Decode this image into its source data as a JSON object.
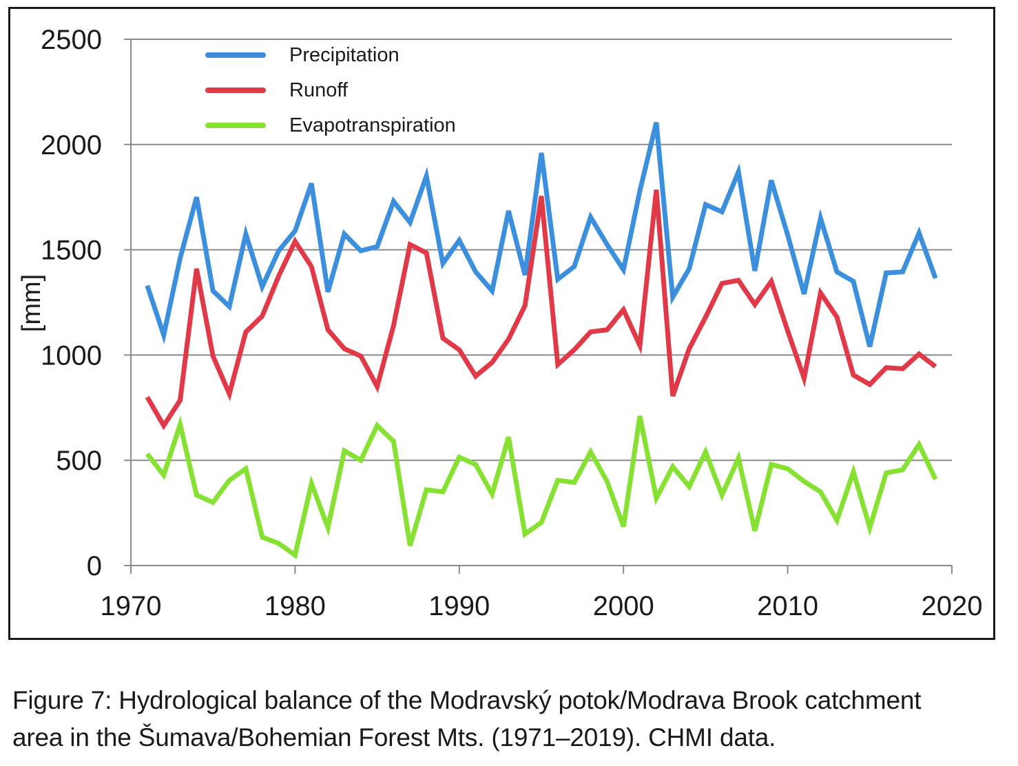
{
  "chart_data": {
    "type": "line",
    "ylabel": "[mm]",
    "xlim": [
      1970,
      2020
    ],
    "ylim": [
      0,
      2500
    ],
    "xticks": [
      "1970",
      "1980",
      "1990",
      "2000",
      "2010",
      "2020"
    ],
    "yticks": [
      "0",
      "500",
      "1000",
      "1500",
      "2000",
      "2500"
    ],
    "grid": "horizontal",
    "legend_position": "top-left",
    "x": [
      1971,
      1972,
      1973,
      1974,
      1975,
      1976,
      1977,
      1978,
      1979,
      1980,
      1981,
      1982,
      1983,
      1984,
      1985,
      1986,
      1987,
      1988,
      1989,
      1990,
      1991,
      1992,
      1993,
      1994,
      1995,
      1996,
      1997,
      1998,
      1999,
      2000,
      2001,
      2002,
      2003,
      2004,
      2005,
      2006,
      2007,
      2008,
      2009,
      2010,
      2011,
      2012,
      2013,
      2014,
      2015,
      2016,
      2017,
      2018,
      2019
    ],
    "series": [
      {
        "name": "Precipitation",
        "color": "#3b8fdc",
        "values": [
          1330,
          1095,
          1460,
          1750,
          1305,
          1230,
          1575,
          1325,
          1495,
          1590,
          1815,
          1300,
          1575,
          1495,
          1515,
          1730,
          1630,
          1850,
          1435,
          1545,
          1395,
          1305,
          1685,
          1380,
          1960,
          1360,
          1420,
          1655,
          1525,
          1405,
          1780,
          2105,
          1275,
          1410,
          1715,
          1680,
          1870,
          1400,
          1830,
          1570,
          1290,
          1650,
          1395,
          1350,
          1040,
          1390,
          1395,
          1580,
          1365
        ]
      },
      {
        "name": "Runoff",
        "color": "#e03a48",
        "values": [
          800,
          665,
          785,
          1410,
          995,
          815,
          1110,
          1185,
          1375,
          1540,
          1420,
          1120,
          1030,
          995,
          850,
          1140,
          1525,
          1485,
          1080,
          1025,
          900,
          965,
          1075,
          1235,
          1755,
          955,
          1025,
          1110,
          1120,
          1215,
          1045,
          1785,
          805,
          1030,
          1180,
          1340,
          1355,
          1240,
          1350,
          1115,
          890,
          1295,
          1180,
          905,
          860,
          940,
          935,
          1005,
          945
        ]
      },
      {
        "name": "Evapotranspiration",
        "color": "#86e132",
        "values": [
          530,
          430,
          670,
          335,
          300,
          405,
          460,
          135,
          105,
          50,
          390,
          180,
          545,
          500,
          665,
          590,
          95,
          360,
          350,
          515,
          480,
          340,
          610,
          150,
          205,
          405,
          395,
          540,
          400,
          185,
          710,
          320,
          470,
          375,
          540,
          335,
          510,
          165,
          480,
          460,
          400,
          350,
          215,
          445,
          180,
          440,
          455,
          575,
          410
        ]
      }
    ]
  },
  "caption": {
    "line1": "Figure 7: Hydrological balance of the Modravský potok/Modrava Brook catchment",
    "line2": "area in the Šumava/Bohemian  Forest Mts. (1971–2019). CHMI data."
  }
}
